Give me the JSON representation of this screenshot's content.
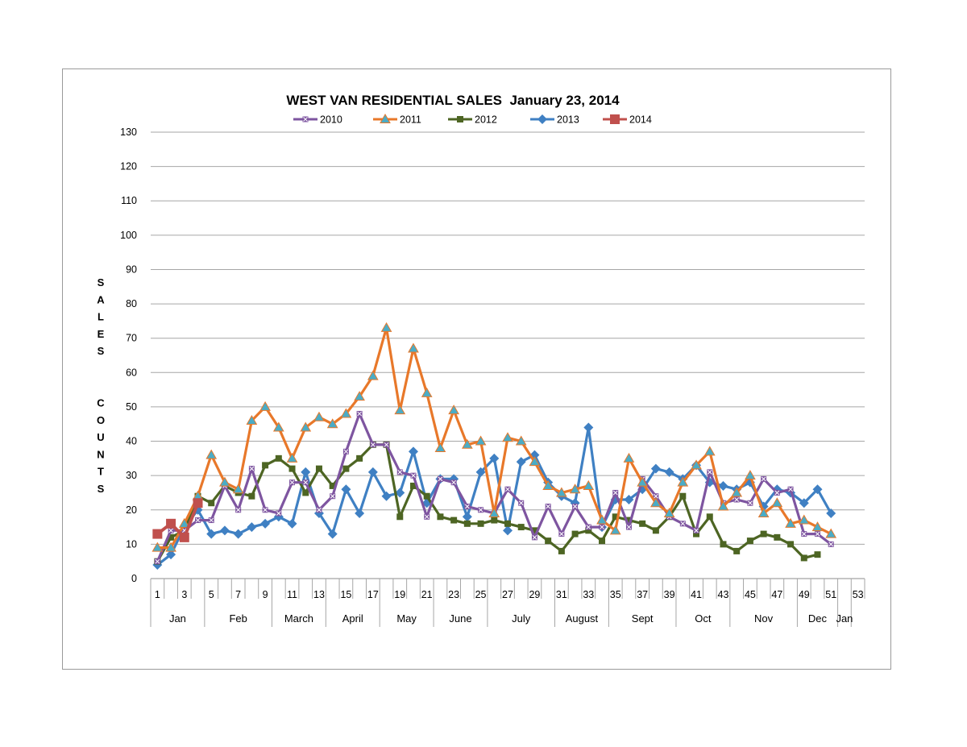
{
  "chart_data": {
    "type": "line",
    "title": "WEST VAN RESIDENTIAL SALES  January 23, 2014",
    "ylabel": "SALES COUNTS",
    "xlabel": "",
    "ylim": [
      0,
      130
    ],
    "ytick_step": 10,
    "xlim": [
      1,
      53
    ],
    "xtick_labels": [
      "1",
      "3",
      "5",
      "7",
      "9",
      "11",
      "13",
      "15",
      "17",
      "19",
      "21",
      "23",
      "25",
      "27",
      "29",
      "31",
      "33",
      "35",
      "37",
      "39",
      "41",
      "43",
      "45",
      "47",
      "49",
      "51",
      "53"
    ],
    "months": [
      {
        "label": "Jan",
        "start": 1,
        "end": 5
      },
      {
        "label": "Feb",
        "start": 5,
        "end": 10
      },
      {
        "label": "March",
        "start": 10,
        "end": 14
      },
      {
        "label": "April",
        "start": 14,
        "end": 18
      },
      {
        "label": "May",
        "start": 18,
        "end": 22
      },
      {
        "label": "June",
        "start": 22,
        "end": 26
      },
      {
        "label": "July",
        "start": 26,
        "end": 31
      },
      {
        "label": "August",
        "start": 31,
        "end": 35
      },
      {
        "label": "Sept",
        "start": 35,
        "end": 40
      },
      {
        "label": "Oct",
        "start": 40,
        "end": 44
      },
      {
        "label": "Nov",
        "start": 44,
        "end": 49
      },
      {
        "label": "Dec",
        "start": 49,
        "end": 52
      },
      {
        "label": "Jan",
        "start": 52,
        "end": 53
      }
    ],
    "grid": true,
    "legend_position": "top",
    "series": [
      {
        "name": "2010",
        "color": "#7e55a0",
        "marker": "square-x",
        "values": [
          5,
          14,
          14,
          17,
          17,
          27,
          20,
          32,
          20,
          19,
          28,
          28,
          20,
          24,
          37,
          48,
          39,
          39,
          31,
          30,
          18,
          29,
          28,
          21,
          20,
          19,
          26,
          22,
          12,
          21,
          13,
          21,
          15,
          15,
          25,
          15,
          29,
          24,
          18,
          16,
          14,
          31,
          22,
          23,
          22,
          29,
          25,
          26,
          13,
          13,
          10
        ]
      },
      {
        "name": "2011",
        "color": "#e8782a",
        "marker": "triangle",
        "values": [
          9,
          9,
          16,
          24,
          36,
          28,
          26,
          46,
          50,
          44,
          35,
          44,
          47,
          45,
          48,
          53,
          59,
          73,
          49,
          67,
          54,
          38,
          49,
          39,
          40,
          19,
          41,
          40,
          34,
          27,
          25,
          26,
          27,
          17,
          14,
          35,
          28,
          22,
          19,
          28,
          33,
          37,
          21,
          25,
          30,
          19,
          22,
          16,
          17,
          15,
          13
        ]
      },
      {
        "name": "2012",
        "color": "#4d6523",
        "marker": "square",
        "values": [
          5,
          12,
          14,
          24,
          22,
          27,
          25,
          24,
          33,
          35,
          32,
          25,
          32,
          27,
          32,
          35,
          39,
          39,
          18,
          27,
          24,
          18,
          17,
          16,
          16,
          17,
          16,
          15,
          14,
          11,
          8,
          13,
          14,
          11,
          18,
          17,
          16,
          14,
          18,
          24,
          13,
          18,
          10,
          8,
          11,
          13,
          12,
          10,
          6,
          7,
          null
        ]
      },
      {
        "name": "2013",
        "color": "#3f80c3",
        "marker": "diamond",
        "values": [
          4,
          7,
          15,
          20,
          13,
          14,
          13,
          15,
          16,
          18,
          16,
          31,
          19,
          13,
          26,
          19,
          31,
          24,
          25,
          37,
          22,
          29,
          29,
          18,
          31,
          35,
          14,
          34,
          36,
          28,
          24,
          22,
          44,
          15,
          23,
          23,
          26,
          32,
          31,
          29,
          33,
          28,
          27,
          26,
          28,
          21,
          26,
          25,
          22,
          26,
          19
        ]
      },
      {
        "name": "2014",
        "color": "#c0504d",
        "marker": "bigsquare",
        "values": [
          13,
          16,
          12,
          22
        ]
      }
    ]
  }
}
